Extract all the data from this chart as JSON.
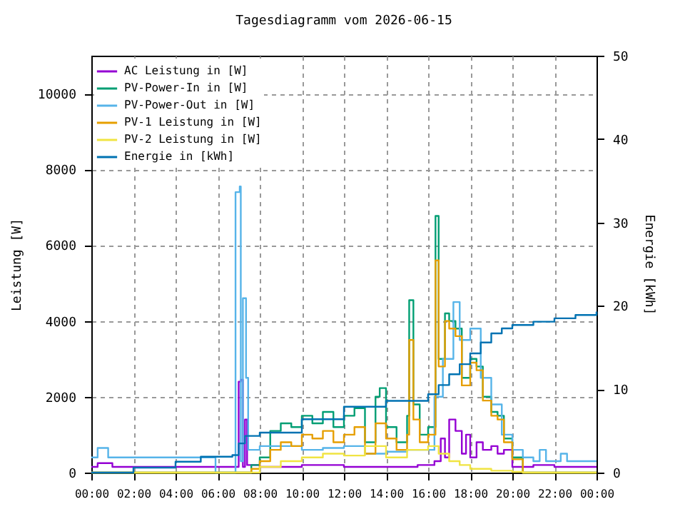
{
  "chart_data": {
    "type": "step",
    "title": "Tagesdiagramm vom 2026-06-15",
    "ylabel": "Leistung [W]",
    "y2label": "Energie [kWh]",
    "xlim": [
      0,
      24
    ],
    "ylim": [
      0,
      11000
    ],
    "y2lim": [
      0,
      50
    ],
    "xticks": [
      {
        "value": 0,
        "label": "00:00"
      },
      {
        "value": 2,
        "label": "02:00"
      },
      {
        "value": 4,
        "label": "04:00"
      },
      {
        "value": 6,
        "label": "06:00"
      },
      {
        "value": 8,
        "label": "08:00"
      },
      {
        "value": 10,
        "label": "10:00"
      },
      {
        "value": 12,
        "label": "12:00"
      },
      {
        "value": 14,
        "label": "14:00"
      },
      {
        "value": 16,
        "label": "16:00"
      },
      {
        "value": 18,
        "label": "18:00"
      },
      {
        "value": 20,
        "label": "20:00"
      },
      {
        "value": 22,
        "label": "22:00"
      },
      {
        "value": 24,
        "label": "00:00"
      }
    ],
    "yticks": [
      0,
      2000,
      4000,
      6000,
      8000,
      10000
    ],
    "y2ticks": [
      0,
      10,
      20,
      30,
      40,
      50
    ],
    "grid": true,
    "legend": "top left",
    "marker": "none",
    "line_style": "solid",
    "series": [
      {
        "name": "AC Leistung in [W]",
        "color": "#9400d3",
        "x": [
          0,
          0.3,
          1,
          5.2,
          6.9,
          7.0,
          7.1,
          7.2,
          7.3,
          7.4,
          8,
          10,
          12,
          14,
          15.5,
          16.3,
          16.6,
          16.8,
          17.0,
          17.3,
          17.6,
          17.8,
          18.0,
          18.3,
          18.6,
          19.0,
          19.3,
          19.6,
          20.0,
          20.5,
          21,
          22,
          24
        ],
        "values": [
          150,
          250,
          150,
          150,
          150,
          2400,
          2450,
          150,
          1400,
          200,
          150,
          200,
          150,
          150,
          200,
          300,
          900,
          400,
          1400,
          1100,
          500,
          1000,
          400,
          800,
          600,
          700,
          500,
          600,
          150,
          150,
          200,
          150,
          150
        ]
      },
      {
        "name": "PV-Power-In in [W]",
        "color": "#009e73",
        "x": [
          0,
          7.2,
          7.6,
          8,
          8.5,
          9,
          9.5,
          10,
          10.5,
          11,
          11.5,
          12,
          12.5,
          13,
          13.5,
          13.7,
          14,
          14.5,
          15,
          15.1,
          15.3,
          15.6,
          16,
          16.35,
          16.5,
          16.8,
          17,
          17.3,
          17.6,
          18,
          18.3,
          18.6,
          19,
          19.3,
          19.6,
          20,
          20.5,
          24
        ],
        "values": [
          0,
          0,
          200,
          400,
          1100,
          1300,
          1200,
          1500,
          1300,
          1600,
          1200,
          1500,
          1700,
          800,
          2000,
          2230,
          1200,
          800,
          1500,
          4550,
          1800,
          1000,
          1200,
          6770,
          3000,
          4200,
          4000,
          3800,
          2500,
          3000,
          2800,
          2000,
          1600,
          1500,
          900,
          400,
          0,
          0
        ]
      },
      {
        "name": "PV-Power-Out in [W]",
        "color": "#56b4e9",
        "x": [
          0,
          0.3,
          0.8,
          5.2,
          5.9,
          6.8,
          6.85,
          7.05,
          7.1,
          7.2,
          7.35,
          7.45,
          8,
          9,
          10,
          11,
          12,
          13,
          14,
          15,
          15.8,
          16.3,
          16.7,
          17.2,
          17.5,
          18,
          18.5,
          19,
          19.5,
          20,
          20.5,
          21,
          21.3,
          21.6,
          22,
          22.3,
          22.6,
          23,
          24
        ],
        "values": [
          400,
          650,
          400,
          400,
          0,
          0,
          7400,
          7550,
          300,
          4600,
          2500,
          600,
          700,
          700,
          600,
          650,
          700,
          500,
          550,
          600,
          600,
          2000,
          3000,
          4500,
          3500,
          3800,
          2500,
          1800,
          1000,
          600,
          400,
          300,
          600,
          300,
          300,
          500,
          300,
          300,
          300
        ]
      },
      {
        "name": "PV-1 Leistung in [W]",
        "color": "#e69f00",
        "x": [
          0,
          7.2,
          7.6,
          8,
          8.5,
          9,
          9.5,
          10,
          10.5,
          11,
          11.5,
          12,
          12.5,
          13,
          13.5,
          14,
          14.5,
          15,
          15.1,
          15.3,
          15.6,
          16,
          16.35,
          16.5,
          16.8,
          17,
          17.3,
          17.6,
          18,
          18.3,
          18.6,
          19,
          19.3,
          19.6,
          20,
          20.5,
          24
        ],
        "values": [
          0,
          0,
          100,
          300,
          600,
          800,
          700,
          1000,
          900,
          1100,
          800,
          1000,
          1200,
          500,
          1300,
          900,
          600,
          1000,
          3500,
          1400,
          800,
          1000,
          5600,
          2800,
          4000,
          3800,
          3600,
          2300,
          2900,
          2700,
          1900,
          1500,
          1400,
          800,
          350,
          0,
          0
        ]
      },
      {
        "name": "PV-2 Leistung in [W]",
        "color": "#f0e442",
        "x": [
          0,
          7.2,
          8,
          9,
          10,
          11,
          12,
          13,
          14,
          15,
          16,
          16.5,
          17,
          17.5,
          18,
          19,
          20,
          20.5,
          24
        ],
        "values": [
          0,
          0,
          150,
          300,
          400,
          500,
          450,
          700,
          400,
          600,
          700,
          500,
          300,
          200,
          100,
          50,
          20,
          0,
          0
        ]
      },
      {
        "name": "Energie in [kWh]",
        "color": "#0072b2",
        "axis": "y2",
        "x": [
          0,
          2,
          4,
          5.2,
          6.7,
          7.0,
          7.3,
          8,
          10,
          12,
          14,
          16,
          16.5,
          17,
          17.5,
          18,
          18.5,
          19,
          19.5,
          20,
          21,
          22,
          23,
          24
        ],
        "values": [
          0,
          0.6,
          1.3,
          1.9,
          2.1,
          3.5,
          4.4,
          4.8,
          6.4,
          7.9,
          8.6,
          9.4,
          10.5,
          11.8,
          13.0,
          14.3,
          15.6,
          16.7,
          17.3,
          17.7,
          18.1,
          18.5,
          18.9,
          19.3
        ]
      }
    ]
  }
}
